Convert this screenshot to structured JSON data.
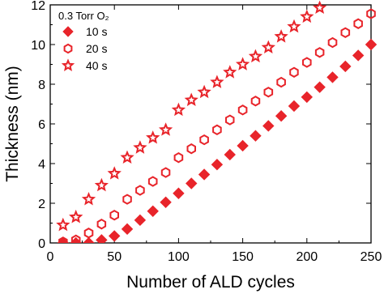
{
  "chart_data": {
    "type": "scatter",
    "xlabel": "Number of ALD cycles",
    "ylabel": "Thickness (nm)",
    "legend_title": "0.3 Torr O₂",
    "legend": "upper left",
    "xlim": [
      0,
      250
    ],
    "xticks": [
      0,
      50,
      100,
      150,
      200,
      250
    ],
    "ylim": [
      0,
      12
    ],
    "yticks": [
      0,
      2,
      4,
      6,
      8,
      10,
      12
    ],
    "series": [
      {
        "name": "10 s",
        "color": "#e8242a",
        "marker": "diamond",
        "filled": true,
        "x": [
          10,
          20,
          30,
          40,
          50,
          60,
          70,
          80,
          90,
          100,
          110,
          120,
          130,
          140,
          150,
          160,
          170,
          180,
          190,
          200,
          210,
          220,
          230,
          240,
          250
        ],
        "values": [
          0,
          0,
          0,
          0.15,
          0.35,
          0.7,
          1.15,
          1.6,
          2.05,
          2.5,
          3.0,
          3.45,
          3.95,
          4.45,
          4.9,
          5.4,
          5.9,
          6.4,
          6.9,
          7.35,
          7.85,
          8.35,
          8.9,
          9.45,
          10.0
        ]
      },
      {
        "name": "20 s",
        "color": "#e8242a",
        "marker": "hexagon",
        "filled": false,
        "x": [
          10,
          20,
          30,
          40,
          50,
          60,
          70,
          80,
          90,
          100,
          110,
          120,
          130,
          140,
          150,
          160,
          170,
          180,
          190,
          200,
          210,
          220,
          230,
          240,
          250
        ],
        "values": [
          0.05,
          0.15,
          0.5,
          0.95,
          1.4,
          2.2,
          2.65,
          3.1,
          3.55,
          4.3,
          4.75,
          5.2,
          5.7,
          6.2,
          6.7,
          7.15,
          7.6,
          8.1,
          8.6,
          9.1,
          9.6,
          10.1,
          10.6,
          11.05,
          11.55
        ]
      },
      {
        "name": "40 s",
        "color": "#e8242a",
        "marker": "star",
        "filled": false,
        "x": [
          10,
          20,
          30,
          40,
          50,
          60,
          70,
          80,
          90,
          100,
          110,
          120,
          130,
          140,
          150,
          160,
          170,
          180,
          190,
          200,
          210
        ],
        "values": [
          0.9,
          1.3,
          2.2,
          2.9,
          3.5,
          4.3,
          4.8,
          5.3,
          5.7,
          6.7,
          7.2,
          7.6,
          8.1,
          8.6,
          9.0,
          9.4,
          9.85,
          10.4,
          10.9,
          11.4,
          11.85
        ]
      }
    ]
  }
}
